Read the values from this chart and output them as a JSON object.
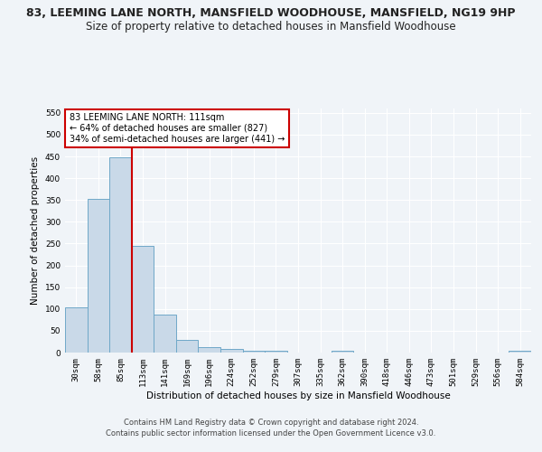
{
  "title": "83, LEEMING LANE NORTH, MANSFIELD WOODHOUSE, MANSFIELD, NG19 9HP",
  "subtitle": "Size of property relative to detached houses in Mansfield Woodhouse",
  "xlabel": "Distribution of detached houses by size in Mansfield Woodhouse",
  "ylabel": "Number of detached properties",
  "footer_line1": "Contains HM Land Registry data © Crown copyright and database right 2024.",
  "footer_line2": "Contains public sector information licensed under the Open Government Licence v3.0.",
  "bar_labels": [
    "30sqm",
    "58sqm",
    "85sqm",
    "113sqm",
    "141sqm",
    "169sqm",
    "196sqm",
    "224sqm",
    "252sqm",
    "279sqm",
    "307sqm",
    "335sqm",
    "362sqm",
    "390sqm",
    "418sqm",
    "446sqm",
    "473sqm",
    "501sqm",
    "529sqm",
    "556sqm",
    "584sqm"
  ],
  "bar_values": [
    103,
    353,
    447,
    245,
    87,
    30,
    13,
    9,
    5,
    5,
    0,
    0,
    5,
    0,
    0,
    0,
    0,
    0,
    0,
    0,
    5
  ],
  "bar_color": "#c9d9e8",
  "bar_edge_color": "#6fa8c8",
  "vline_x": 2.5,
  "vline_color": "#cc0000",
  "ylim": [
    0,
    560
  ],
  "yticks": [
    0,
    50,
    100,
    150,
    200,
    250,
    300,
    350,
    400,
    450,
    500,
    550
  ],
  "annotation_text": "83 LEEMING LANE NORTH: 111sqm\n← 64% of detached houses are smaller (827)\n34% of semi-detached houses are larger (441) →",
  "annotation_box_color": "#ffffff",
  "annotation_border_color": "#cc0000",
  "bg_color": "#f0f4f8",
  "grid_color": "#ffffff",
  "title_fontsize": 9,
  "subtitle_fontsize": 8.5,
  "axis_label_fontsize": 7.5,
  "tick_fontsize": 6.5,
  "annotation_fontsize": 7,
  "footer_fontsize": 6
}
